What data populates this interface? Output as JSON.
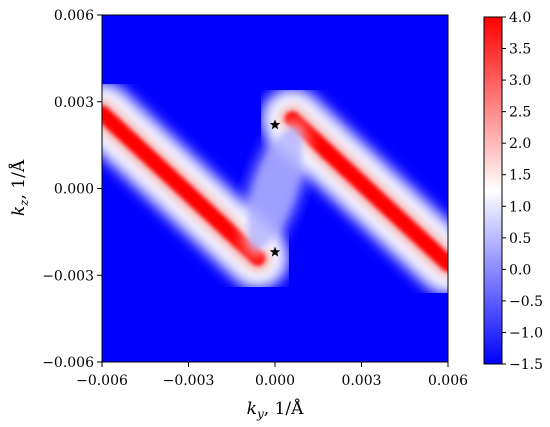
{
  "chart_data": {
    "type": "heatmap",
    "title": "",
    "xlabel": "k_y, 1/Å",
    "ylabel": "k_z, 1/Å",
    "xlabel_parts": {
      "main": "k",
      "sub": "y",
      "rest": ", 1/Å"
    },
    "ylabel_parts": {
      "main": "k",
      "sub": "z",
      "rest": ", 1/Å"
    },
    "xlim": [
      -0.006,
      0.006
    ],
    "ylim": [
      -0.006,
      0.006
    ],
    "x_ticks": [
      -0.006,
      -0.003,
      0.0,
      0.003,
      0.006
    ],
    "x_tick_labels": [
      "−0.006",
      "−0.003",
      "0.000",
      "0.003",
      "0.006"
    ],
    "y_ticks": [
      -0.006,
      -0.003,
      0.0,
      0.003,
      0.006
    ],
    "y_tick_labels": [
      "−0.006",
      "−0.003",
      "0.000",
      "0.003",
      "0.006"
    ],
    "colorbar": {
      "range": [
        -1.5,
        4.0
      ],
      "ticks": [
        4.0,
        3.5,
        3.0,
        2.5,
        2.0,
        1.5,
        1.0,
        0.5,
        0.0,
        -0.5,
        -1.0,
        -1.5
      ],
      "tick_labels": [
        "4.0",
        "3.5",
        "3.0",
        "2.5",
        "2.0",
        "1.5",
        "1.0",
        "0.5",
        "0.0",
        "−0.5",
        "−1.0",
        "−1.5"
      ],
      "colormap": "bwr",
      "color_low": "#0000ff",
      "color_mid": "#ffffff",
      "color_high": "#ff0000"
    },
    "markers": [
      {
        "x": 0.0,
        "y": 0.0022,
        "symbol": "star",
        "color": "#000000"
      },
      {
        "x": 0.0,
        "y": -0.0022,
        "symbol": "star",
        "color": "#000000"
      }
    ],
    "features": [
      {
        "name": "left band",
        "from": [
          -0.006,
          0.0026
        ],
        "to": [
          -0.0006,
          -0.0024
        ],
        "peak_value": 4.0
      },
      {
        "name": "right band",
        "from": [
          0.0006,
          0.0024
        ],
        "to": [
          0.006,
          -0.0026
        ],
        "peak_value": 4.0
      },
      {
        "name": "central lobe",
        "center": [
          0.0,
          0.0
        ],
        "value": 0.3
      }
    ],
    "background_value": -1.5,
    "grid": false,
    "legend": "none"
  }
}
